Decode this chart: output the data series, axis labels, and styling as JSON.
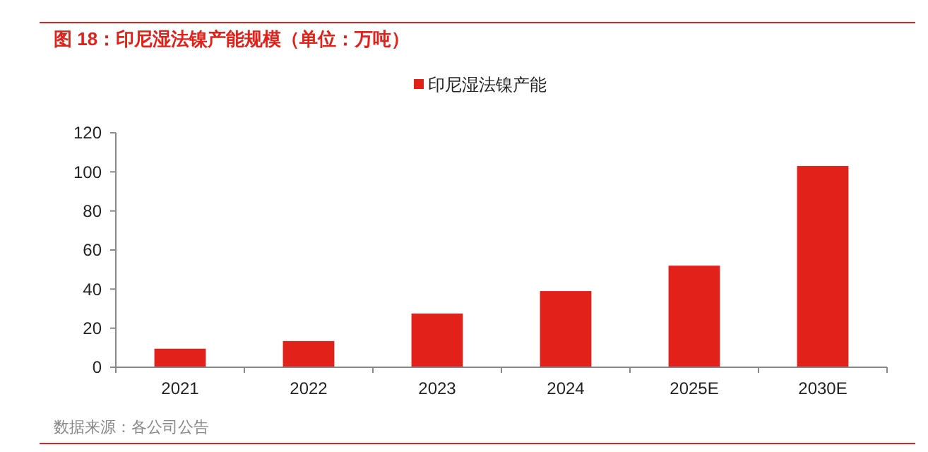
{
  "chart_data": {
    "type": "bar",
    "title": "图 18：印尼湿法镍产能规模（单位：万吨）",
    "categories": [
      "2021",
      "2022",
      "2023",
      "2024",
      "2025E",
      "2030E"
    ],
    "series": [
      {
        "name": "印尼湿法镍产能",
        "color": "#e3211b",
        "values": [
          9.5,
          13.4,
          27.5,
          39,
          52,
          103
        ]
      }
    ],
    "ylim": [
      0,
      120
    ],
    "yticks": [
      0,
      20,
      40,
      60,
      80,
      100,
      120
    ],
    "grid": false,
    "legend": "top",
    "annotations": [
      "数据来源：各公司公告"
    ]
  }
}
